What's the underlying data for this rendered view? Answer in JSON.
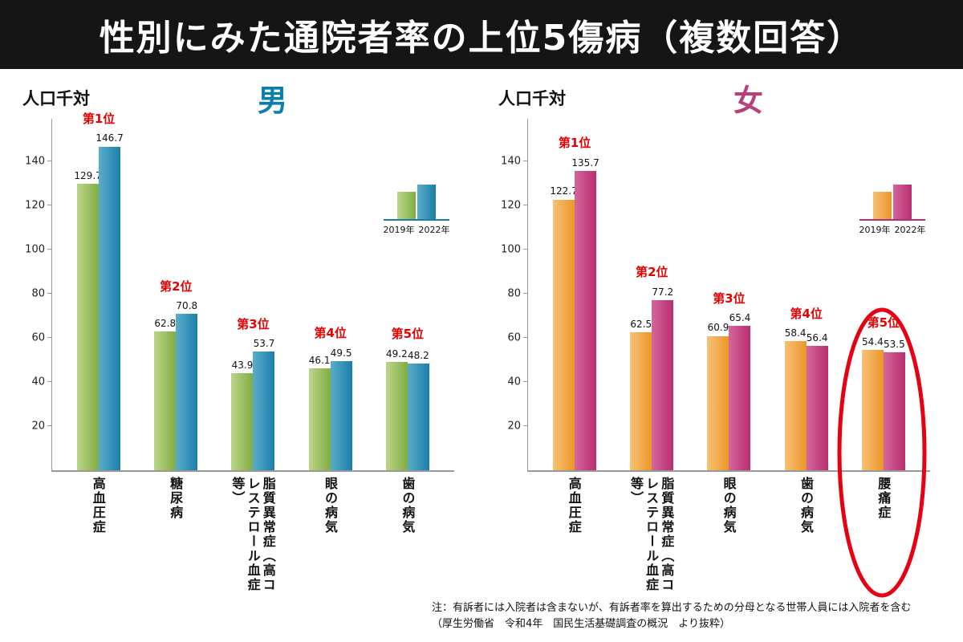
{
  "header": {
    "title": "性別にみた通院者率の上位5傷病（複数回答）"
  },
  "note": {
    "line1": "注：有訴者には入院者は含まないが、有訴者率を算出するための分母となる世帯人員には入院者を含む",
    "line2": "（厚生労働省　令和4年　国民生活基礎調査の概況　より抜粋）"
  },
  "chart_data": [
    {
      "type": "bar",
      "gender_title": "男",
      "title_color": "#0a7fae",
      "unit_label": "人口千対",
      "categories": [
        "高血圧症",
        "糖尿病",
        "脂質異常症（高コレステロール血症等）",
        "眼の病気",
        "歯の病気"
      ],
      "ranks": [
        "第1位",
        "第2位",
        "第3位",
        "第4位",
        "第5位"
      ],
      "series": [
        {
          "name": "2019年",
          "color_light": "#bdd489",
          "color_dark": "#7fae43",
          "values": [
            129.7,
            62.8,
            43.9,
            46.1,
            49.2
          ]
        },
        {
          "name": "2022年",
          "color_light": "#5aadc9",
          "color_dark": "#1b7ea9",
          "values": [
            146.7,
            70.8,
            53.7,
            49.5,
            48.2
          ]
        }
      ],
      "ylim": [
        0,
        160
      ],
      "yticks": [
        20,
        40,
        60,
        80,
        100,
        120,
        140
      ],
      "legend_position": "upper-right",
      "grid": false,
      "highlight_index": null
    },
    {
      "type": "bar",
      "gender_title": "女",
      "title_color": "#b7407d",
      "unit_label": "人口千対",
      "categories": [
        "高血圧症",
        "脂質異常症（高コレステロール血症等）",
        "眼の病気",
        "歯の病気",
        "腰痛症"
      ],
      "ranks": [
        "第1位",
        "第2位",
        "第3位",
        "第4位",
        "第5位"
      ],
      "series": [
        {
          "name": "2019年",
          "color_light": "#f7c276",
          "color_dark": "#ec9527",
          "values": [
            122.7,
            62.5,
            60.9,
            58.4,
            54.4
          ]
        },
        {
          "name": "2022年",
          "color_light": "#d2679c",
          "color_dark": "#b92e6f",
          "values": [
            135.7,
            77.2,
            65.4,
            56.4,
            53.5
          ]
        }
      ],
      "ylim": [
        0,
        160
      ],
      "yticks": [
        20,
        40,
        60,
        80,
        100,
        120,
        140
      ],
      "legend_position": "upper-right",
      "grid": false,
      "highlight_index": 4,
      "highlight_color": "#e60012"
    }
  ]
}
